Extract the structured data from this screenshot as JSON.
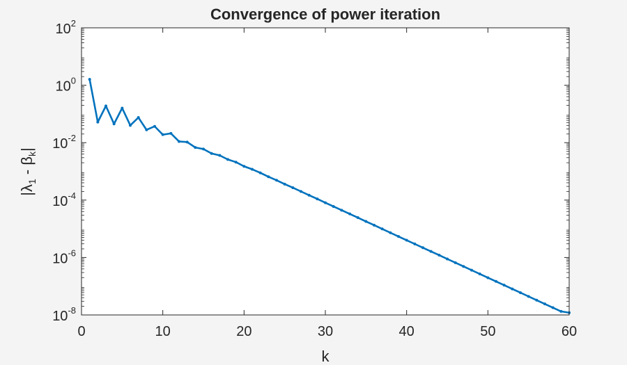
{
  "chart_data": {
    "type": "line",
    "title": "Convergence of power iteration",
    "xlabel": "k",
    "ylabel": {
      "pre": "|λ",
      "sub1": "1",
      "mid": " - β",
      "sub2": "k",
      "post": "|"
    },
    "xlim": [
      0,
      60
    ],
    "ylim": [
      1e-08,
      100
    ],
    "yscale": "log",
    "grid": false,
    "xticks": [
      0,
      10,
      20,
      30,
      40,
      50,
      60
    ],
    "xtick_labels": [
      "0",
      "10",
      "20",
      "30",
      "40",
      "50",
      "60"
    ],
    "yticks": [
      1e-08,
      1e-06,
      0.0001,
      0.01,
      1,
      100
    ],
    "ytick_labels": [
      {
        "base": "10",
        "exp": "-8"
      },
      {
        "base": "10",
        "exp": "-6"
      },
      {
        "base": "10",
        "exp": "-4"
      },
      {
        "base": "10",
        "exp": "-2"
      },
      {
        "base": "10",
        "exp": "0"
      },
      {
        "base": "10",
        "exp": "2"
      }
    ],
    "series": [
      {
        "color": "#0072bd",
        "x": [
          1,
          2,
          3,
          4,
          5,
          6,
          7,
          8,
          9,
          10,
          11,
          12,
          13,
          14,
          15,
          16,
          17,
          18,
          19,
          20,
          21,
          22,
          23,
          24,
          25,
          26,
          27,
          28,
          29,
          30,
          31,
          32,
          33,
          34,
          35,
          36,
          37,
          38,
          39,
          40,
          41,
          42,
          43,
          44,
          45,
          46,
          47,
          48,
          49,
          50,
          51,
          52,
          53,
          54,
          55,
          56,
          57,
          58,
          59,
          60
        ],
        "y": [
          1.6,
          0.052,
          0.19,
          0.045,
          0.16,
          0.04,
          0.075,
          0.028,
          0.037,
          0.019,
          0.021,
          0.011,
          0.0105,
          0.0068,
          0.006,
          0.0042,
          0.0036,
          0.0026,
          0.0021,
          0.0015,
          0.00118,
          0.00089,
          0.00065,
          0.00049,
          0.00036,
          0.00027,
          0.0002,
          0.000148,
          0.00011,
          8.1e-05,
          6e-05,
          4.45e-05,
          3.3e-05,
          2.45e-05,
          1.8e-05,
          1.34e-05,
          9.9e-06,
          7.3e-06,
          5.4e-06,
          4e-06,
          2.97e-06,
          2.2e-06,
          1.63e-06,
          1.21e-06,
          8.9e-07,
          6.6e-07,
          4.9e-07,
          3.62e-07,
          2.68e-07,
          1.98e-07,
          1.47e-07,
          1.09e-07,
          8.05e-08,
          5.96e-08,
          4.41e-08,
          3.26e-08,
          2.42e-08,
          1.79e-08,
          1.33e-08,
          1.2e-08
        ]
      }
    ]
  }
}
